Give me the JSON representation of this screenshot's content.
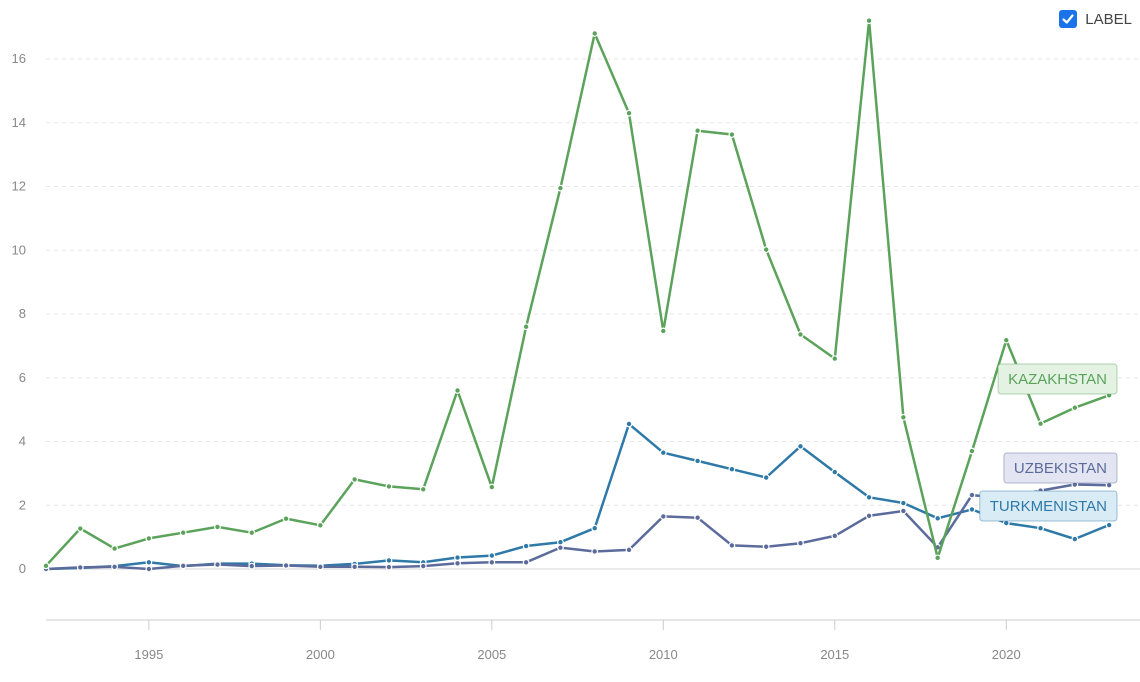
{
  "label_toggle": {
    "text": "LABEL",
    "checked": true
  },
  "chart_data": {
    "type": "line",
    "title": "",
    "xlabel": "",
    "ylabel": "",
    "xlim": [
      1992,
      2023.9
    ],
    "ylim": [
      -1.6,
      17.6
    ],
    "x_ticks": [
      "1995",
      "2000",
      "2005",
      "2010",
      "2015",
      "2020"
    ],
    "y_ticks": [
      "0",
      "2",
      "4",
      "6",
      "8",
      "10",
      "12",
      "14",
      "16"
    ],
    "grid": true,
    "x": [
      1992,
      1993,
      1994,
      1995,
      1996,
      1997,
      1998,
      1999,
      2000,
      2001,
      2002,
      2003,
      2004,
      2005,
      2006,
      2007,
      2008,
      2009,
      2010,
      2011,
      2012,
      2013,
      2014,
      2015,
      2016,
      2017,
      2018,
      2019,
      2020,
      2021,
      2022,
      2023
    ],
    "series": [
      {
        "name": "KAZAKHSTAN",
        "color": "#5ba35b",
        "label_bg": "#e3f2e3",
        "values": [
          0.1,
          1.27,
          0.64,
          0.96,
          1.14,
          1.32,
          1.14,
          1.58,
          1.37,
          2.81,
          2.59,
          2.5,
          5.6,
          2.57,
          7.6,
          11.95,
          16.8,
          14.3,
          7.47,
          13.75,
          13.63,
          10.02,
          7.36,
          6.6,
          17.2,
          4.76,
          0.35,
          3.7,
          7.18,
          4.56,
          5.06,
          5.45
        ]
      },
      {
        "name": "UZBEKISTAN",
        "color": "#5b6b9b",
        "label_bg": "#e4e5f2",
        "values": [
          0.0,
          0.05,
          0.07,
          0.0,
          0.1,
          0.14,
          0.09,
          0.11,
          0.07,
          0.07,
          0.06,
          0.09,
          0.18,
          0.21,
          0.21,
          0.67,
          0.55,
          0.6,
          1.65,
          1.61,
          0.74,
          0.7,
          0.81,
          1.04,
          1.67,
          1.82,
          0.68,
          2.32,
          2.22,
          2.46,
          2.65,
          2.63
        ]
      },
      {
        "name": "TURKMENISTAN",
        "color": "#2e79a8",
        "label_bg": "#d9ecf6",
        "values": [
          0.0,
          0.03,
          0.09,
          0.21,
          0.09,
          0.17,
          0.17,
          0.12,
          0.1,
          0.16,
          0.27,
          0.21,
          0.36,
          0.42,
          0.72,
          0.84,
          1.28,
          4.55,
          3.65,
          3.39,
          3.13,
          2.87,
          3.85,
          3.04,
          2.25,
          2.07,
          1.59,
          1.87,
          1.44,
          1.28,
          0.94,
          1.38
        ]
      }
    ]
  }
}
